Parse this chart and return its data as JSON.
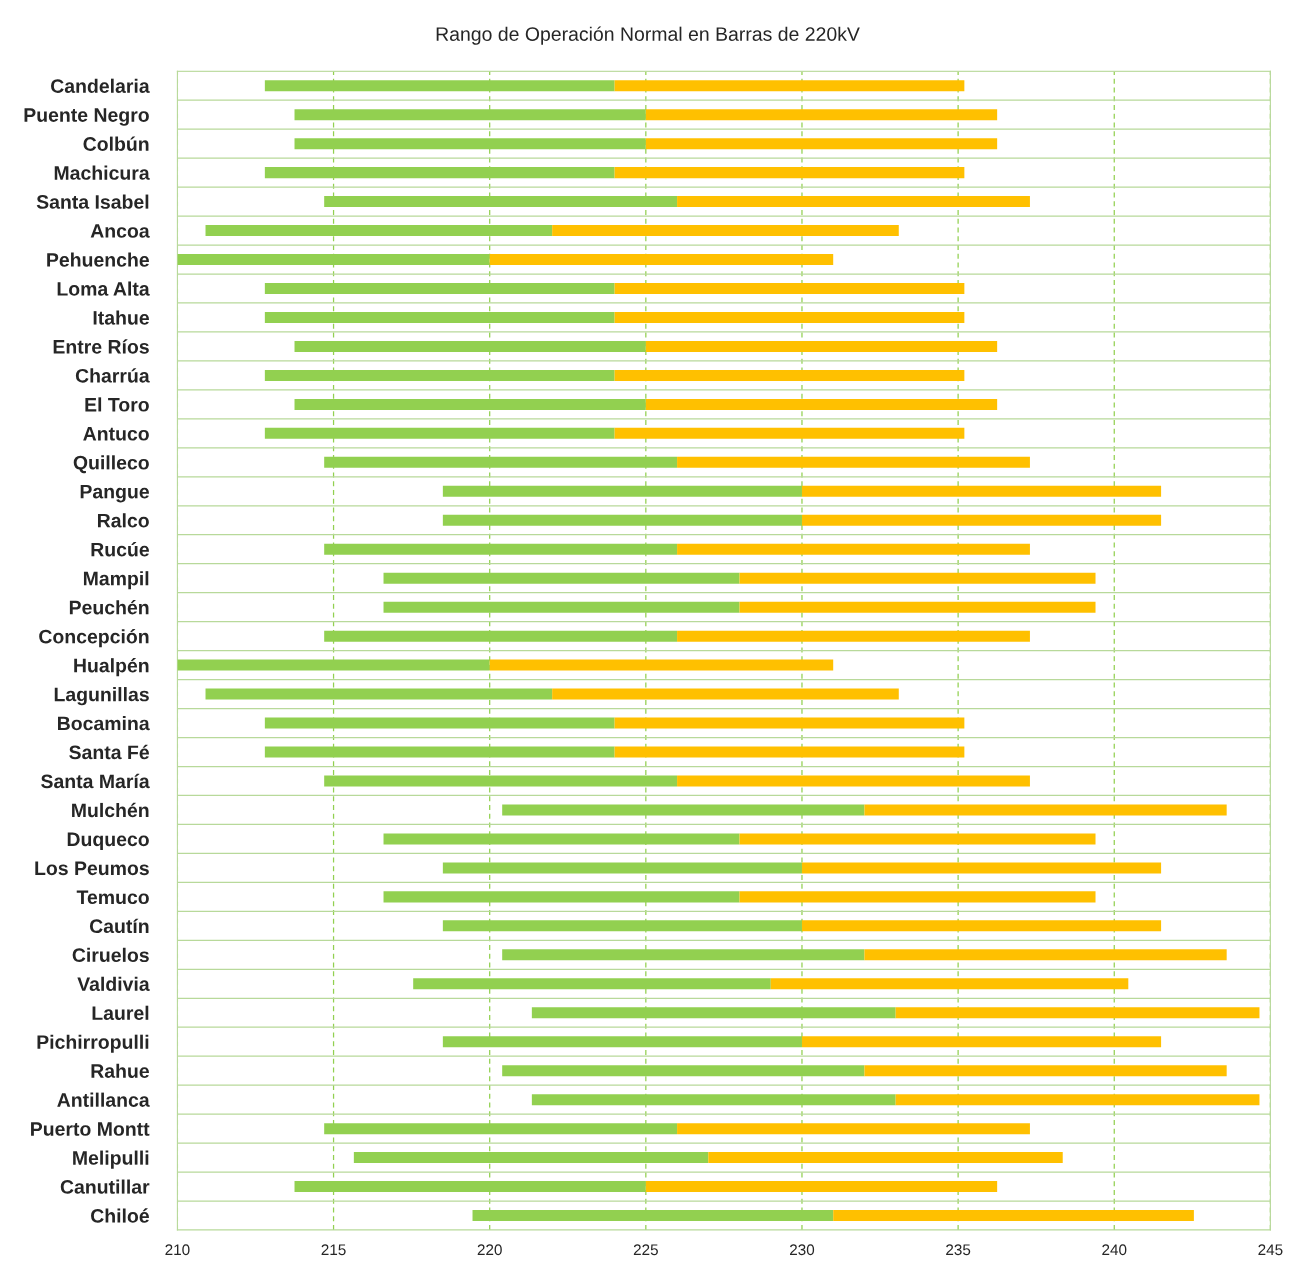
{
  "chart_data": {
    "type": "bar",
    "title": "Rango de Operación Normal en Barras de 220kV",
    "orientation": "horizontal",
    "categories": [
      "Candelaria",
      "Puente Negro",
      "Colbún",
      "Machicura",
      "Santa Isabel",
      "Ancoa",
      "Pehuenche",
      "Loma Alta",
      "Itahue",
      "Entre Ríos",
      "Charrúa",
      "El Toro",
      "Antuco",
      "Quilleco",
      "Pangue",
      "Ralco",
      "Rucúe",
      "Mampil",
      "Peuchén",
      "Concepción",
      "Hualpén",
      "Lagunillas",
      "Bocamina",
      "Santa Fé",
      "Santa María",
      "Mulchén",
      "Duqueco",
      "Los Peumos",
      "Temuco",
      "Cautín",
      "Ciruelos",
      "Valdivia",
      "Laurel",
      "Pichirropulli",
      "Rahue",
      "Antillanca",
      "Puerto Montt",
      "Melipulli",
      "Canutillar",
      "Chiloé"
    ],
    "series": [
      {
        "color": "#92d050",
        "base": [
          212.8,
          213.75,
          213.75,
          212.8,
          214.7,
          210.9,
          210,
          212.8,
          212.8,
          213.75,
          212.8,
          213.75,
          212.8,
          214.7,
          218.5,
          218.5,
          214.7,
          216.6,
          216.6,
          214.7,
          210,
          210.9,
          212.8,
          212.8,
          214.7,
          220.4,
          216.6,
          218.5,
          216.6,
          218.5,
          220.4,
          217.55,
          221.35,
          218.5,
          220.4,
          221.35,
          214.7,
          215.65,
          213.75,
          219.45
        ],
        "values": [
          11.2,
          11.25,
          11.25,
          11.2,
          11.3,
          11.1,
          10,
          11.2,
          11.2,
          11.25,
          11.2,
          11.25,
          11.2,
          11.3,
          11.5,
          11.5,
          11.3,
          11.4,
          11.4,
          11.3,
          10,
          11.1,
          11.2,
          11.2,
          11.3,
          11.6,
          11.4,
          11.5,
          11.4,
          11.5,
          11.6,
          11.45,
          11.65,
          11.5,
          11.6,
          11.65,
          11.3,
          11.35,
          11.25,
          11.55
        ]
      },
      {
        "color": "#ffc000",
        "base": [
          224,
          225,
          225,
          224,
          226,
          222,
          220,
          224,
          224,
          225,
          224,
          225,
          224,
          226,
          230,
          230,
          226,
          228,
          228,
          226,
          220,
          222,
          224,
          224,
          226,
          232,
          228,
          230,
          228,
          230,
          232,
          229,
          233,
          230,
          232,
          233,
          226,
          227,
          225,
          231
        ],
        "values": [
          11.2,
          11.25,
          11.25,
          11.2,
          11.3,
          11.1,
          11,
          11.2,
          11.2,
          11.25,
          11.2,
          11.25,
          11.2,
          11.3,
          11.5,
          11.5,
          11.3,
          11.4,
          11.4,
          11.3,
          11,
          11.1,
          11.2,
          11.2,
          11.3,
          11.6,
          11.4,
          11.5,
          11.4,
          11.5,
          11.6,
          11.45,
          11.65,
          11.5,
          11.6,
          11.65,
          11.3,
          11.35,
          11.25,
          11.55
        ]
      }
    ],
    "xlim": [
      210,
      245
    ],
    "xticks": [
      210,
      215,
      220,
      225,
      230,
      235,
      240,
      245
    ],
    "grid": true
  }
}
